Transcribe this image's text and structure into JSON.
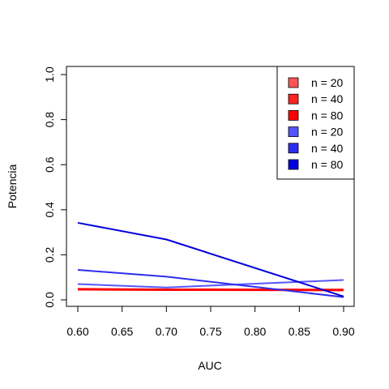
{
  "chart_data": {
    "type": "line",
    "title": "",
    "xlabel": "AUC",
    "ylabel": "Potencia",
    "xlim": [
      0.6,
      0.9
    ],
    "ylim": [
      0.0,
      1.0
    ],
    "x_ticks": [
      "0.60",
      "0.65",
      "0.70",
      "0.75",
      "0.80",
      "0.85",
      "0.90"
    ],
    "y_ticks": [
      "0.0",
      "0.2",
      "0.4",
      "0.6",
      "0.8",
      "1.0"
    ],
    "x": [
      0.6,
      0.7,
      0.9
    ],
    "grid": false,
    "legend_position": "top-right",
    "series": [
      {
        "name": "n = 20",
        "color": "#ff5555",
        "values": [
          0.045,
          0.045,
          0.042
        ]
      },
      {
        "name": "n = 40",
        "color": "#ff2222",
        "values": [
          0.048,
          0.046,
          0.043
        ]
      },
      {
        "name": "n = 80",
        "color": "#ff0000",
        "values": [
          0.047,
          0.045,
          0.044
        ]
      },
      {
        "name": "n = 20",
        "color": "#5555ff",
        "values": [
          0.07,
          0.055,
          0.088
        ]
      },
      {
        "name": "n = 40",
        "color": "#2d2dee",
        "values": [
          0.133,
          0.103,
          0.012
        ]
      },
      {
        "name": "n = 80",
        "color": "#0000dd",
        "values": [
          0.342,
          0.268,
          0.015
        ]
      }
    ]
  }
}
